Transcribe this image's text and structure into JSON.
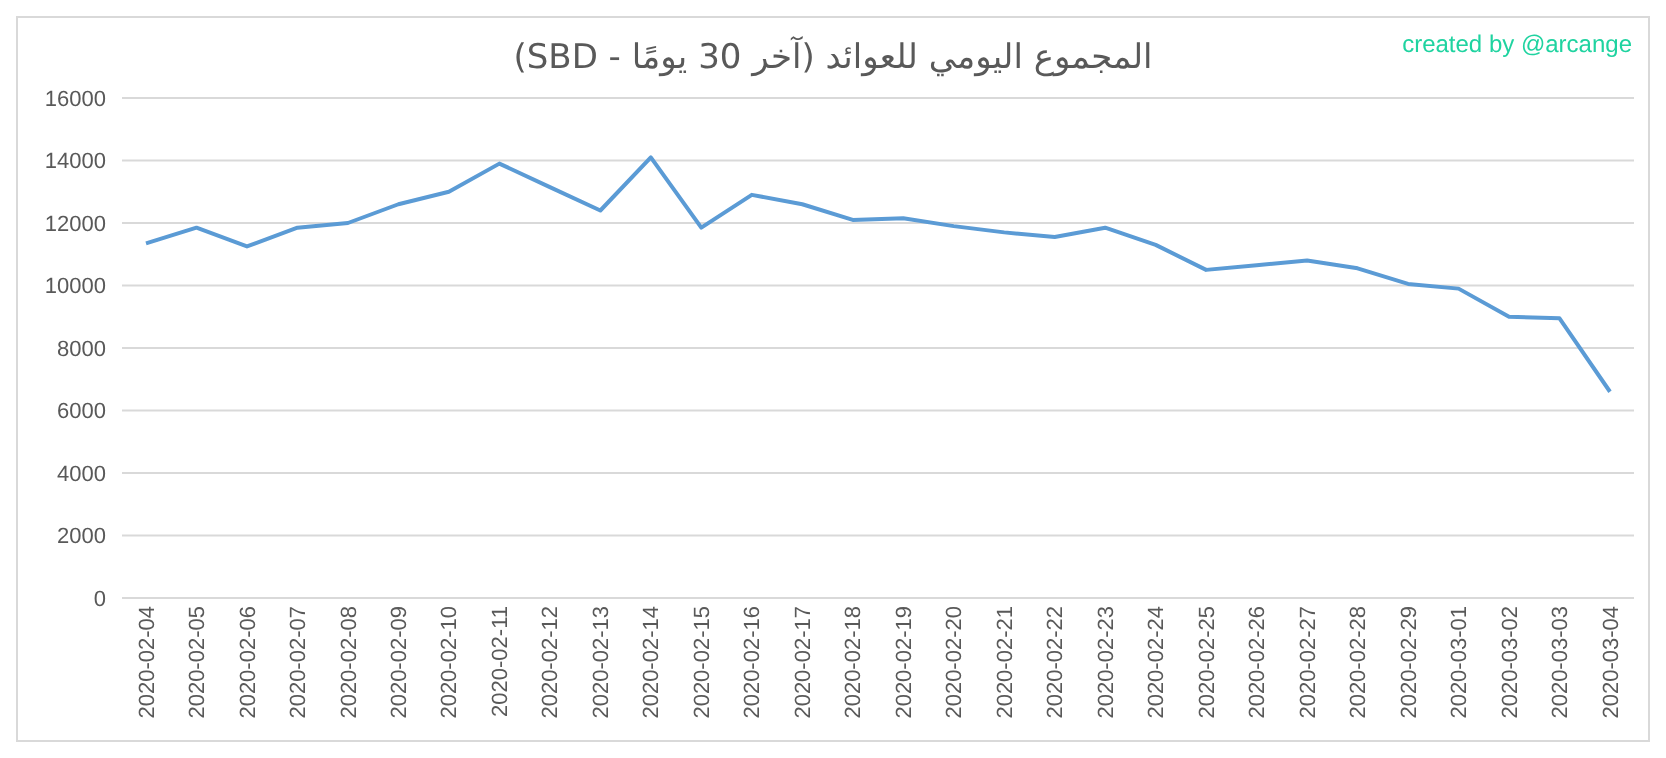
{
  "chart_data": {
    "type": "line",
    "title": "المجموع اليومي للعوائد (آخر 30 يومًا - SBD)",
    "annotations": [
      "created by @arcange"
    ],
    "categories": [
      "2020-02-04",
      "2020-02-05",
      "2020-02-06",
      "2020-02-07",
      "2020-02-08",
      "2020-02-09",
      "2020-02-10",
      "2020-02-11",
      "2020-02-12",
      "2020-02-13",
      "2020-02-14",
      "2020-02-15",
      "2020-02-16",
      "2020-02-17",
      "2020-02-18",
      "2020-02-19",
      "2020-02-20",
      "2020-02-21",
      "2020-02-22",
      "2020-02-23",
      "2020-02-24",
      "2020-02-25",
      "2020-02-26",
      "2020-02-27",
      "2020-02-28",
      "2020-02-29",
      "2020-03-01",
      "2020-03-02",
      "2020-03-03",
      "2020-03-04"
    ],
    "series": [
      {
        "color": "#5b9bd5",
        "values": [
          11350,
          11850,
          11250,
          11850,
          12000,
          12600,
          13000,
          13900,
          13150,
          12400,
          14100,
          11850,
          12900,
          12600,
          12100,
          12150,
          11900,
          11700,
          11550,
          11850,
          11300,
          10500,
          10650,
          10800,
          10550,
          10050,
          9900,
          9000,
          8950,
          6600
        ]
      }
    ],
    "ylim": [
      0,
      16000
    ],
    "yticks": [
      0,
      2000,
      4000,
      6000,
      8000,
      10000,
      12000,
      14000,
      16000
    ],
    "grid": "y",
    "marker": "none",
    "line_style": "solid"
  }
}
